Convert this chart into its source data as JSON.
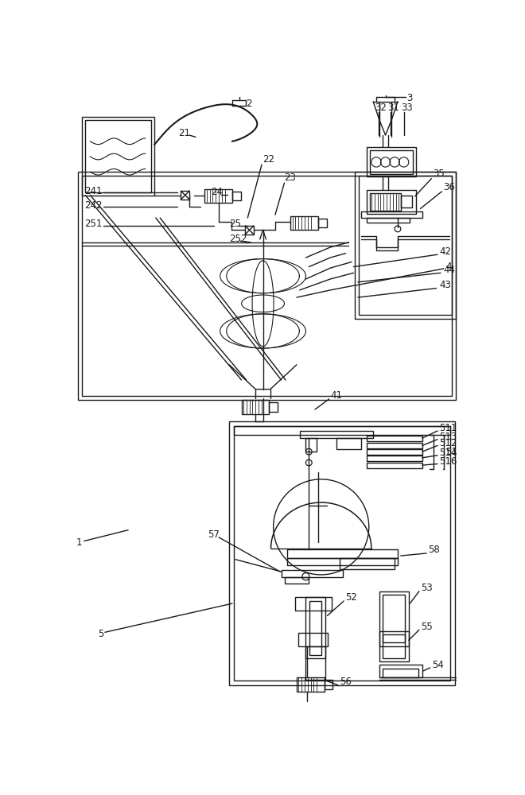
{
  "bg_color": "#ffffff",
  "lc": "#1a1a1a",
  "lw": 1.0,
  "fig_w": 6.6,
  "fig_h": 10.0
}
